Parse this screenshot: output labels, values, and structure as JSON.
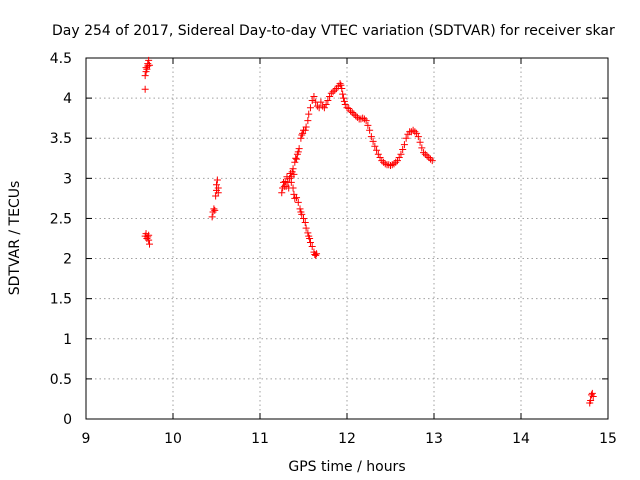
{
  "chart_data": {
    "type": "scatter",
    "title": "Day 254 of 2017, Sidereal Day-to-day VTEC variation (SDTVAR) for receiver skar",
    "xlabel": "GPS time / hours",
    "ylabel": "SDTVAR / TECUs",
    "xlim": [
      9,
      15
    ],
    "ylim": [
      0,
      4.5
    ],
    "xticks": [
      "9",
      "10",
      "11",
      "12",
      "13",
      "14",
      "15"
    ],
    "yticks": [
      "0",
      "0.5",
      "1",
      "1.5",
      "2",
      "2.5",
      "3",
      "3.5",
      "4",
      "4.5"
    ],
    "grid": true,
    "marker": "plus",
    "marker_color": "#ff0000",
    "series": [
      {
        "name": "SDTVAR",
        "points": [
          [
            9.68,
            4.11
          ],
          [
            9.68,
            4.28
          ],
          [
            9.69,
            4.33
          ],
          [
            9.69,
            4.38
          ],
          [
            9.7,
            4.36
          ],
          [
            9.71,
            4.4
          ],
          [
            9.71,
            4.43
          ],
          [
            9.72,
            4.47
          ],
          [
            9.73,
            4.41
          ],
          [
            9.68,
            2.28
          ],
          [
            9.69,
            2.31
          ],
          [
            9.7,
            2.25
          ],
          [
            9.71,
            2.27
          ],
          [
            9.72,
            2.23
          ],
          [
            9.73,
            2.18
          ],
          [
            9.72,
            2.29
          ],
          [
            10.45,
            2.52
          ],
          [
            10.46,
            2.58
          ],
          [
            10.47,
            2.62
          ],
          [
            10.48,
            2.6
          ],
          [
            10.49,
            2.78
          ],
          [
            10.5,
            2.85
          ],
          [
            10.5,
            2.92
          ],
          [
            10.51,
            2.98
          ],
          [
            10.52,
            2.88
          ],
          [
            10.52,
            2.82
          ],
          [
            11.25,
            2.82
          ],
          [
            11.26,
            2.88
          ],
          [
            11.27,
            2.95
          ],
          [
            11.28,
            2.9
          ],
          [
            11.29,
            2.96
          ],
          [
            11.3,
            2.9
          ],
          [
            11.31,
            3.02
          ],
          [
            11.32,
            2.95
          ],
          [
            11.33,
            2.88
          ],
          [
            11.34,
            3.0
          ],
          [
            11.35,
            3.06
          ],
          [
            11.36,
            3.02
          ],
          [
            11.37,
            3.08
          ],
          [
            11.38,
            3.12
          ],
          [
            11.39,
            3.05
          ],
          [
            11.4,
            3.2
          ],
          [
            11.41,
            3.25
          ],
          [
            11.42,
            3.24
          ],
          [
            11.43,
            3.3
          ],
          [
            11.44,
            3.33
          ],
          [
            11.45,
            3.37
          ],
          [
            11.47,
            3.5
          ],
          [
            11.48,
            3.54
          ],
          [
            11.49,
            3.56
          ],
          [
            11.5,
            3.6
          ],
          [
            11.52,
            3.6
          ],
          [
            11.53,
            3.64
          ],
          [
            11.55,
            3.72
          ],
          [
            11.56,
            3.8
          ],
          [
            11.58,
            3.88
          ],
          [
            11.6,
            3.97
          ],
          [
            11.62,
            4.02
          ],
          [
            11.64,
            3.95
          ],
          [
            11.66,
            3.9
          ],
          [
            11.68,
            3.88
          ],
          [
            11.7,
            3.95
          ],
          [
            11.72,
            3.9
          ],
          [
            11.74,
            3.88
          ],
          [
            11.76,
            3.92
          ],
          [
            11.78,
            3.97
          ],
          [
            11.8,
            4.02
          ],
          [
            11.82,
            4.06
          ],
          [
            11.84,
            4.08
          ],
          [
            11.86,
            4.1
          ],
          [
            11.88,
            4.12
          ],
          [
            11.9,
            4.15
          ],
          [
            11.92,
            4.18
          ],
          [
            11.93,
            4.16
          ],
          [
            11.94,
            4.12
          ],
          [
            11.95,
            4.05
          ],
          [
            11.96,
            4.0
          ],
          [
            11.97,
            3.96
          ],
          [
            11.98,
            3.92
          ],
          [
            12.0,
            3.88
          ],
          [
            12.02,
            3.87
          ],
          [
            12.04,
            3.84
          ],
          [
            12.06,
            3.82
          ],
          [
            12.08,
            3.8
          ],
          [
            12.1,
            3.78
          ],
          [
            12.12,
            3.76
          ],
          [
            12.14,
            3.74
          ],
          [
            12.16,
            3.74
          ],
          [
            12.18,
            3.75
          ],
          [
            12.2,
            3.74
          ],
          [
            12.22,
            3.72
          ],
          [
            12.24,
            3.66
          ],
          [
            12.26,
            3.6
          ],
          [
            12.28,
            3.52
          ],
          [
            12.3,
            3.46
          ],
          [
            12.32,
            3.4
          ],
          [
            12.34,
            3.35
          ],
          [
            12.36,
            3.3
          ],
          [
            12.38,
            3.26
          ],
          [
            12.4,
            3.22
          ],
          [
            12.42,
            3.2
          ],
          [
            12.44,
            3.18
          ],
          [
            12.46,
            3.17
          ],
          [
            12.48,
            3.17
          ],
          [
            12.5,
            3.16
          ],
          [
            12.52,
            3.17
          ],
          [
            12.54,
            3.18
          ],
          [
            12.56,
            3.2
          ],
          [
            12.58,
            3.22
          ],
          [
            12.6,
            3.26
          ],
          [
            12.62,
            3.3
          ],
          [
            12.64,
            3.36
          ],
          [
            12.66,
            3.42
          ],
          [
            12.68,
            3.5
          ],
          [
            12.7,
            3.55
          ],
          [
            12.72,
            3.58
          ],
          [
            12.74,
            3.58
          ],
          [
            12.76,
            3.6
          ],
          [
            12.78,
            3.58
          ],
          [
            12.8,
            3.56
          ],
          [
            12.82,
            3.52
          ],
          [
            12.84,
            3.45
          ],
          [
            12.86,
            3.38
          ],
          [
            12.88,
            3.32
          ],
          [
            12.9,
            3.3
          ],
          [
            12.92,
            3.28
          ],
          [
            12.94,
            3.26
          ],
          [
            12.96,
            3.24
          ],
          [
            12.98,
            3.22
          ],
          [
            11.36,
            2.95
          ],
          [
            11.38,
            2.88
          ],
          [
            11.39,
            2.8
          ],
          [
            11.4,
            2.75
          ],
          [
            11.42,
            2.76
          ],
          [
            11.44,
            2.7
          ],
          [
            11.46,
            2.62
          ],
          [
            11.47,
            2.58
          ],
          [
            11.48,
            2.55
          ],
          [
            11.5,
            2.5
          ],
          [
            11.52,
            2.45
          ],
          [
            11.53,
            2.38
          ],
          [
            11.55,
            2.32
          ],
          [
            11.56,
            2.28
          ],
          [
            11.57,
            2.25
          ],
          [
            11.58,
            2.2
          ],
          [
            11.6,
            2.15
          ],
          [
            11.62,
            2.08
          ],
          [
            11.63,
            2.05
          ],
          [
            11.64,
            2.04
          ],
          [
            11.65,
            2.06
          ],
          [
            14.79,
            0.2
          ],
          [
            14.8,
            0.23
          ],
          [
            14.81,
            0.3
          ],
          [
            14.82,
            0.32
          ],
          [
            14.83,
            0.28
          ]
        ]
      }
    ]
  }
}
